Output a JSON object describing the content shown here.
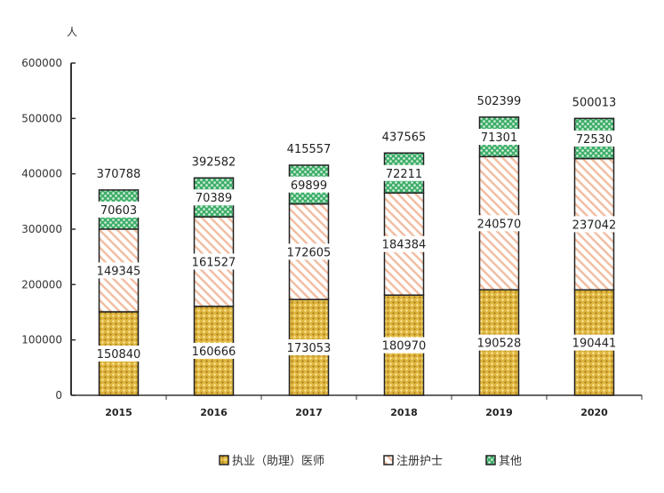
{
  "chart_data": {
    "type": "bar",
    "stacked": true,
    "ylabel": "人",
    "ylim": [
      0,
      600000
    ],
    "yticks": [
      "0",
      "100000",
      "200000",
      "300000",
      "400000",
      "500000",
      "600000"
    ],
    "categories": [
      "2015",
      "2016",
      "2017",
      "2018",
      "2019",
      "2020"
    ],
    "series": [
      {
        "name": "执业（助理）医师",
        "color": "#d4aa3a",
        "values": [
          150840,
          160666,
          173053,
          180970,
          190528,
          190441
        ]
      },
      {
        "name": "注册护士",
        "color": "#f0b89a",
        "values": [
          149345,
          161527,
          172605,
          184384,
          240570,
          237042
        ]
      },
      {
        "name": "其他",
        "color": "#3fae6a",
        "values": [
          70603,
          70389,
          69899,
          72211,
          71301,
          72530
        ]
      }
    ],
    "totals": [
      370788,
      392582,
      415557,
      437565,
      502399,
      500013
    ],
    "legend_position": "bottom",
    "grid": false
  }
}
